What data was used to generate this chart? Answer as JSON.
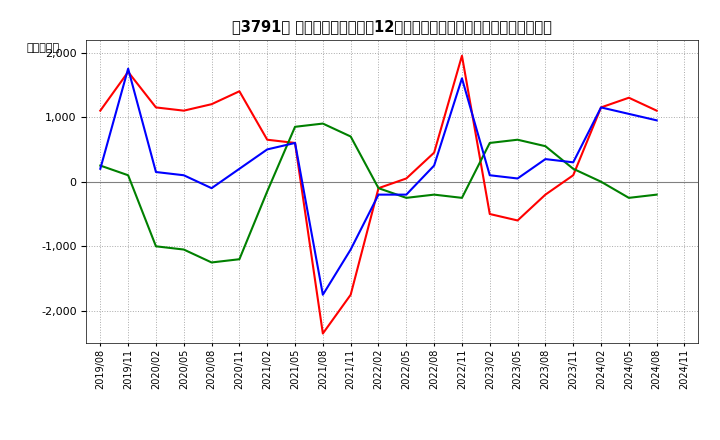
{
  "ylabel": "（百万円）",
  "ylim": [
    -2500,
    2200
  ],
  "yticks": [
    -2000,
    -1000,
    0,
    1000,
    2000
  ],
  "x_labels": [
    "2019/08",
    "2019/11",
    "2020/02",
    "2020/05",
    "2020/08",
    "2020/11",
    "2021/02",
    "2021/05",
    "2021/08",
    "2021/11",
    "2022/02",
    "2022/05",
    "2022/08",
    "2022/11",
    "2023/02",
    "2023/05",
    "2023/08",
    "2023/11",
    "2024/02",
    "2024/05",
    "2024/08",
    "2024/11"
  ],
  "operating_cf": [
    1100,
    1700,
    1150,
    1100,
    1200,
    1400,
    650,
    600,
    -2350,
    -1750,
    -100,
    50,
    450,
    1950,
    -500,
    -600,
    -200,
    100,
    1150,
    1300,
    1100,
    null
  ],
  "investing_cf": [
    250,
    100,
    -1000,
    -1050,
    -1250,
    -1200,
    -150,
    850,
    900,
    700,
    -100,
    -250,
    -200,
    -250,
    600,
    650,
    550,
    200,
    0,
    -250,
    -200,
    null
  ],
  "free_cf": [
    200,
    1750,
    150,
    100,
    -100,
    200,
    500,
    600,
    -1750,
    -1050,
    -200,
    -200,
    250,
    1600,
    100,
    50,
    350,
    300,
    1150,
    1050,
    950,
    null
  ],
  "operating_color": "#ff0000",
  "investing_color": "#008000",
  "free_color": "#0000ff",
  "background_color": "#ffffff",
  "grid_color": "#aaaaaa",
  "title_fontsize": 10.5
}
